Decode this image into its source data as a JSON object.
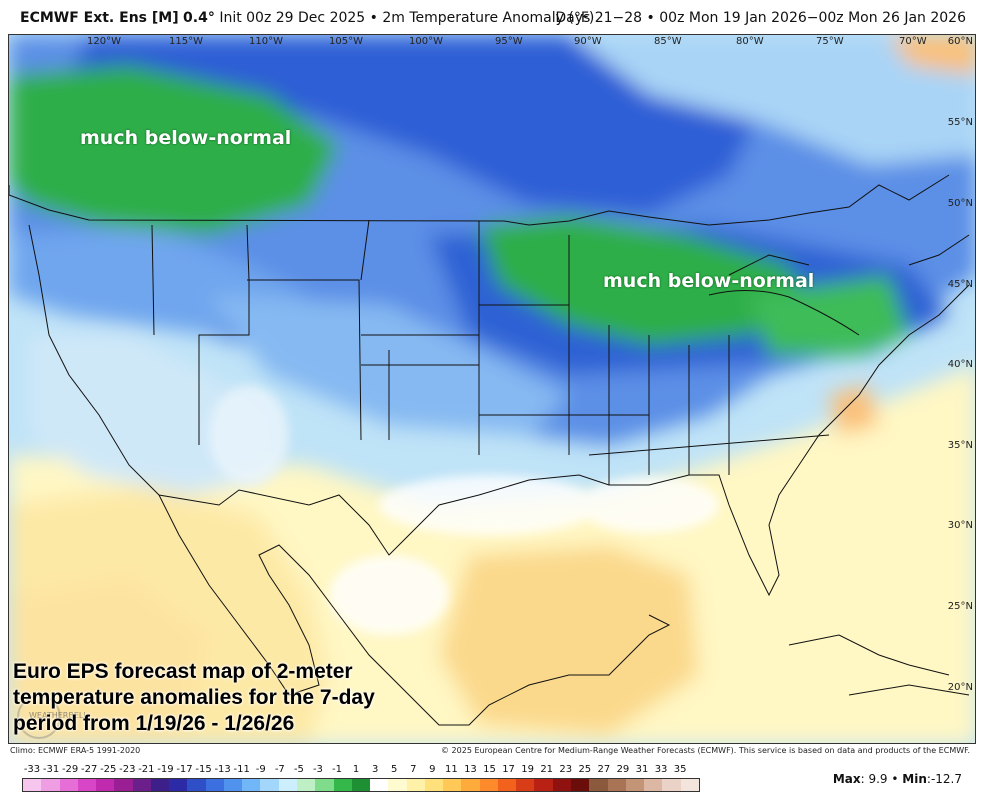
{
  "header": {
    "model": "ECMWF Ext. Ens [M]",
    "resolution": "0.4°",
    "init": "Init 00z 29 Dec 2025",
    "sep": "•",
    "field": "2m Temperature Anomaly (°F)",
    "valid": "Days 21−28 • 00z Mon 19 Jan 2026−00z Mon 26 Jan 2026"
  },
  "map": {
    "longitude_labels": [
      "120°W",
      "115°W",
      "110°W",
      "105°W",
      "100°W",
      "95°W",
      "90°W",
      "85°W",
      "80°W",
      "75°W",
      "70°W"
    ],
    "latitude_labels": [
      "60°N",
      "55°N",
      "50°N",
      "45°N",
      "40°N",
      "35°N",
      "30°N",
      "25°N",
      "20°N"
    ],
    "annotations": [
      "much below-normal",
      "much below-normal"
    ]
  },
  "caption": {
    "lines": [
      "Euro EPS forecast map of 2-meter",
      "temperature anomalies for the 7-day",
      "period from 1/19/26 - 1/26/26"
    ]
  },
  "logo": {
    "text": "WEATHERBELL"
  },
  "footer": {
    "climo": "Climo: ECMWF ERA-5 1991-2020",
    "copyright": "© 2025 European Centre for Medium-Range Weather Forecasts (ECMWF). This service is based on data and products of the ECMWF."
  },
  "legend": {
    "ticks": [
      "-33",
      "-31",
      "-29",
      "-27",
      "-25",
      "-23",
      "-21",
      "-19",
      "-17",
      "-15",
      "-13",
      "-11",
      "-9",
      "-7",
      "-5",
      "-3",
      "-1",
      "1",
      "3",
      "5",
      "7",
      "9",
      "11",
      "13",
      "15",
      "17",
      "19",
      "21",
      "23",
      "25",
      "27",
      "29",
      "31",
      "33",
      "35"
    ],
    "colors": [
      "#f7c6ef",
      "#ef9ee3",
      "#e56fd6",
      "#d845c6",
      "#bf2aae",
      "#9a1f95",
      "#6b1f8a",
      "#3d1f8a",
      "#2c2aa6",
      "#2f4fc9",
      "#3c6fe0",
      "#4f93ef",
      "#71b6f6",
      "#a3d6fb",
      "#cdeefd",
      "#bff0c5",
      "#7fdc8a",
      "#34b84a",
      "#1e8f33",
      "#ffffff",
      "#fffbd0",
      "#fff1a8",
      "#ffe07a",
      "#ffc857",
      "#ffab3c",
      "#ff8a2b",
      "#f2621d",
      "#d93d18",
      "#b82114",
      "#8f1210",
      "#6b0d0b",
      "#8b5a3c",
      "#a87455",
      "#c49477",
      "#dcb8a4",
      "#ead3c6",
      "#f3e4dc"
    ],
    "max_label": "Max",
    "max_value": "9.9",
    "min_label": "Min",
    "min_value": "-12.7"
  }
}
